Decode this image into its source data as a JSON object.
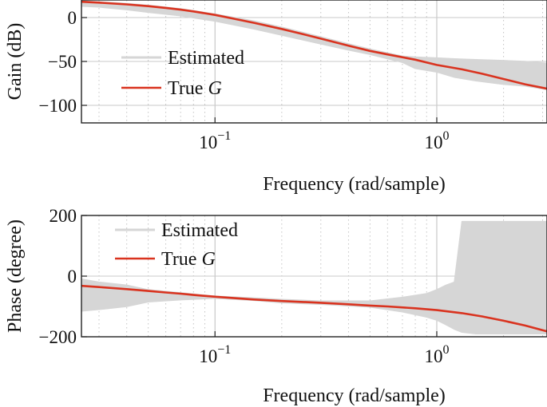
{
  "colors": {
    "estimated": "#d6d6d6",
    "true_g": "#d9331f"
  },
  "chart_data": [
    {
      "type": "line",
      "xscale": "log",
      "xlim": [
        0.025,
        3.14
      ],
      "ylim": [
        -120,
        20
      ],
      "x_ticks": [
        0.1,
        1
      ],
      "x_tick_labels": [
        {
          "base": "10",
          "exp": "−1"
        },
        {
          "base": "10",
          "exp": "0"
        }
      ],
      "y_ticks": [
        0,
        -50,
        -100
      ],
      "y_tick_labels": [
        "0",
        "−50",
        "−100"
      ],
      "xlabel": "Frequency (rad/sample)",
      "ylabel": "Gain (dB)",
      "grid": true,
      "legend": "center-left",
      "series": [
        {
          "name": "Estimated",
          "color": "#d6d6d6",
          "x": [
            0.025,
            0.03,
            0.04,
            0.05,
            0.07,
            0.1,
            0.15,
            0.2,
            0.3,
            0.4,
            0.5,
            0.7,
            0.8,
            1.0,
            1.2,
            1.5,
            2.0,
            2.5,
            3.14
          ],
          "y_low": [
            13,
            12,
            9,
            6,
            2,
            -4,
            -13,
            -20,
            -30,
            -37,
            -42,
            -51,
            -58,
            -62,
            -68,
            -72,
            -76,
            -78,
            -82
          ],
          "y_high": [
            19,
            18,
            16,
            14,
            10,
            4,
            -4,
            -11,
            -22,
            -30,
            -36,
            -44,
            -45,
            -46,
            -47,
            -48,
            -49,
            -50,
            -52
          ]
        },
        {
          "name": "True G",
          "color": "#d9331f",
          "x": [
            0.025,
            0.03,
            0.04,
            0.05,
            0.06,
            0.07,
            0.08,
            0.1,
            0.12,
            0.15,
            0.2,
            0.25,
            0.3,
            0.4,
            0.5,
            0.6,
            0.8,
            1.0,
            1.3,
            1.6,
            2.0,
            2.5,
            3.14
          ],
          "y": [
            18,
            17,
            15,
            13,
            11,
            9,
            7,
            3,
            -1,
            -6,
            -13,
            -19,
            -24,
            -32,
            -38,
            -42,
            -48,
            -54,
            -59,
            -64,
            -70,
            -76,
            -81
          ]
        }
      ]
    },
    {
      "type": "line",
      "xscale": "log",
      "xlim": [
        0.025,
        3.14
      ],
      "ylim": [
        -200,
        200
      ],
      "x_ticks": [
        0.1,
        1
      ],
      "x_tick_labels": [
        {
          "base": "10",
          "exp": "−1"
        },
        {
          "base": "10",
          "exp": "0"
        }
      ],
      "y_ticks": [
        200,
        0,
        -200
      ],
      "y_tick_labels": [
        "200",
        "0",
        "−200"
      ],
      "xlabel": "Frequency (rad/sample)",
      "ylabel": "Phase (degree)",
      "grid": true,
      "legend": "top-left",
      "series": [
        {
          "name": "Estimated",
          "color": "#d6d6d6",
          "x": [
            0.025,
            0.03,
            0.04,
            0.05,
            0.07,
            0.1,
            0.15,
            0.2,
            0.3,
            0.5,
            0.7,
            0.9,
            1.0,
            1.1,
            1.2,
            1.3,
            1.5,
            2.0,
            2.5,
            3.14
          ],
          "y_low": [
            -115,
            -110,
            -100,
            -85,
            -78,
            -73,
            -80,
            -88,
            -93,
            -102,
            -118,
            -135,
            -145,
            -160,
            -175,
            -185,
            -190,
            -190,
            -190,
            -190
          ],
          "y_high": [
            -10,
            -20,
            -30,
            -45,
            -55,
            -66,
            -72,
            -77,
            -82,
            -82,
            -70,
            -58,
            -45,
            -30,
            -20,
            180,
            180,
            180,
            180,
            180
          ]
        },
        {
          "name": "True G",
          "color": "#d9331f",
          "x": [
            0.025,
            0.03,
            0.04,
            0.05,
            0.06,
            0.07,
            0.08,
            0.1,
            0.15,
            0.2,
            0.3,
            0.4,
            0.5,
            0.6,
            0.8,
            1.0,
            1.3,
            1.6,
            2.0,
            2.5,
            3.14
          ],
          "y": [
            -32,
            -36,
            -43,
            -49,
            -54,
            -58,
            -62,
            -68,
            -77,
            -82,
            -88,
            -93,
            -97,
            -100,
            -106,
            -112,
            -122,
            -133,
            -147,
            -163,
            -182
          ]
        }
      ]
    }
  ]
}
